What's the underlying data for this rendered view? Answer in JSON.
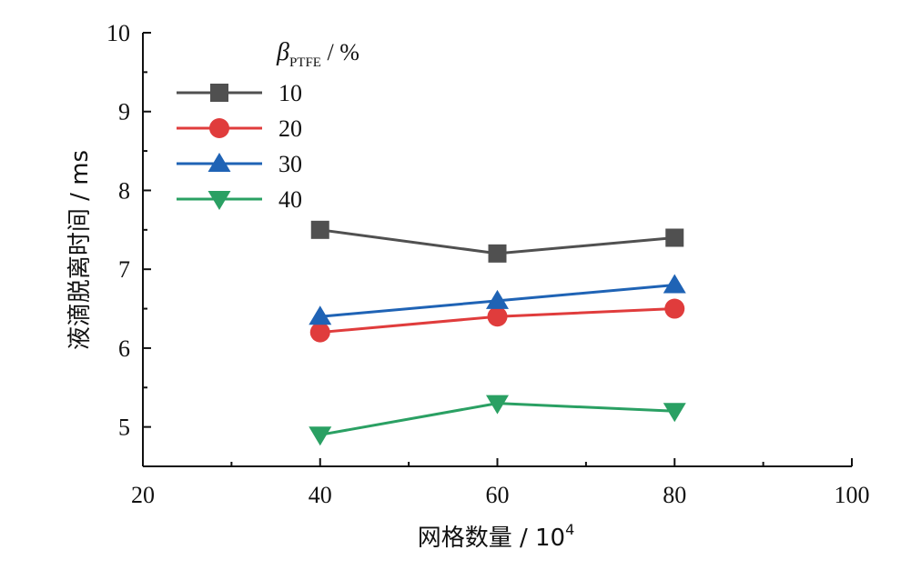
{
  "chart_data": {
    "type": "line",
    "xlabel": "网格数量 / 10",
    "xlabel_sup": "4",
    "ylabel": "液滴脱离时间 / ms",
    "xlim": [
      20,
      100
    ],
    "ylim": [
      4.5,
      10
    ],
    "xticks": [
      20,
      40,
      60,
      80,
      100
    ],
    "yticks": [
      5,
      6,
      7,
      8,
      9,
      10
    ],
    "x": [
      40,
      60,
      80
    ],
    "legend_title": {
      "symbol": "β",
      "subscript": "PTFE",
      "unit": " / %"
    },
    "legend_position": "top-left",
    "grid": false,
    "series": [
      {
        "name": "10",
        "values": [
          7.5,
          7.2,
          7.4
        ],
        "color": "#505050",
        "marker": "square"
      },
      {
        "name": "20",
        "values": [
          6.2,
          6.4,
          6.5
        ],
        "color": "#e03c3c",
        "marker": "circle"
      },
      {
        "name": "30",
        "values": [
          6.4,
          6.6,
          6.8
        ],
        "color": "#1f63b5",
        "marker": "triangle-up"
      },
      {
        "name": "40",
        "values": [
          4.9,
          5.3,
          5.2
        ],
        "color": "#2aa063",
        "marker": "triangle-down"
      }
    ]
  }
}
